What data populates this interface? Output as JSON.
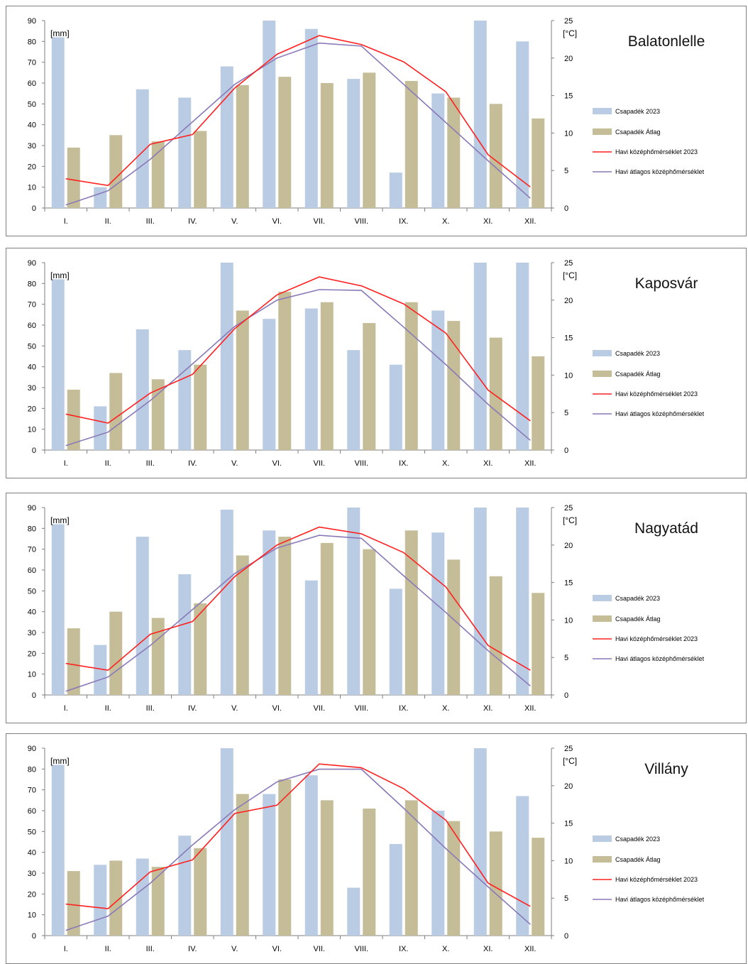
{
  "colors": {
    "precip_2023": "#b9cce4",
    "precip_avg": "#c4bd97",
    "temp_2023": "#ff2020",
    "temp_avg": "#8a79b8",
    "grid_axis": "#7f7f7f"
  },
  "chart_data": [
    {
      "type": "bar",
      "title": "Balatonlelle",
      "left_axis_label": "[mm]",
      "right_axis_label": "[°C]",
      "categories": [
        "I.",
        "II.",
        "III.",
        "IV.",
        "V.",
        "VI.",
        "VII.",
        "VIII.",
        "IX.",
        "X.",
        "XI.",
        "XII."
      ],
      "ylim_left": [
        0,
        90
      ],
      "ylim_right": [
        0,
        25
      ],
      "yticks_left": [
        "0",
        "10",
        "20",
        "30",
        "40",
        "50",
        "60",
        "70",
        "80",
        "90"
      ],
      "yticks_right": [
        "0",
        "5",
        "10",
        "15",
        "20",
        "25"
      ],
      "legend_position": "right",
      "series": [
        {
          "name": "Csapadék 2023",
          "type": "bar",
          "axis": "left",
          "values": [
            82,
            10,
            57,
            53,
            68,
            90,
            86,
            62,
            17,
            55,
            90,
            80
          ]
        },
        {
          "name": "Csapadék Átlag",
          "type": "bar",
          "axis": "left",
          "values": [
            29,
            35,
            32,
            37,
            59,
            63,
            60,
            65,
            61,
            53,
            50,
            43
          ]
        },
        {
          "name": "Havi középhőmérséklet 2023",
          "type": "line",
          "axis": "right",
          "values": [
            3.9,
            3.0,
            8.5,
            9.8,
            16.0,
            20.5,
            23.0,
            21.8,
            19.5,
            15.5,
            7.1,
            2.8
          ]
        },
        {
          "name": "Havi átlagos középhőmérséklet",
          "type": "line",
          "axis": "right",
          "values": [
            0.4,
            2.3,
            6.5,
            11.5,
            16.5,
            20.0,
            22.0,
            21.6,
            16.5,
            11.4,
            6.3,
            1.3
          ]
        }
      ]
    },
    {
      "type": "bar",
      "title": "Kaposvár",
      "left_axis_label": "[mm]",
      "right_axis_label": "[°C]",
      "categories": [
        "I.",
        "II.",
        "III.",
        "IV.",
        "V.",
        "VI.",
        "VII.",
        "VIII.",
        "IX.",
        "X.",
        "XI.",
        "XII."
      ],
      "ylim_left": [
        0,
        90
      ],
      "ylim_right": [
        0,
        25
      ],
      "yticks_left": [
        "0",
        "10",
        "20",
        "30",
        "40",
        "50",
        "60",
        "70",
        "80",
        "90"
      ],
      "yticks_right": [
        "0",
        "5",
        "10",
        "15",
        "20",
        "25"
      ],
      "legend_position": "right",
      "series": [
        {
          "name": "Csapadék 2023",
          "type": "bar",
          "axis": "left",
          "values": [
            82,
            21,
            58,
            48,
            90,
            63,
            68,
            48,
            41,
            67,
            90,
            90
          ]
        },
        {
          "name": "Csapadék Átlag",
          "type": "bar",
          "axis": "left",
          "values": [
            29,
            37,
            34,
            41,
            67,
            76,
            71,
            61,
            71,
            62,
            54,
            45
          ]
        },
        {
          "name": "Havi középhőmérséklet 2023",
          "type": "line",
          "axis": "right",
          "values": [
            4.8,
            3.6,
            7.6,
            10.1,
            16.2,
            20.7,
            23.1,
            21.9,
            19.5,
            15.6,
            8.0,
            3.9
          ]
        },
        {
          "name": "Havi átlagos középhőmérséklet",
          "type": "line",
          "axis": "right",
          "values": [
            0.6,
            2.4,
            6.6,
            11.5,
            16.5,
            20.0,
            21.4,
            21.3,
            16.4,
            11.4,
            6.1,
            1.3
          ]
        }
      ]
    },
    {
      "type": "bar",
      "title": "Nagyatád",
      "left_axis_label": "[mm]",
      "right_axis_label": "[°C]",
      "categories": [
        "I.",
        "II.",
        "III.",
        "IV.",
        "V.",
        "VI.",
        "VII.",
        "VIII.",
        "IX.",
        "X.",
        "XI.",
        "XII."
      ],
      "ylim_left": [
        0,
        90
      ],
      "ylim_right": [
        0,
        25
      ],
      "yticks_left": [
        "0",
        "10",
        "20",
        "30",
        "40",
        "50",
        "60",
        "70",
        "80",
        "90"
      ],
      "yticks_right": [
        "0",
        "5",
        "10",
        "15",
        "20",
        "25"
      ],
      "legend_position": "right",
      "series": [
        {
          "name": "Csapadék 2023",
          "type": "bar",
          "axis": "left",
          "values": [
            82,
            24,
            76,
            58,
            89,
            79,
            55,
            90,
            51,
            78,
            90,
            90
          ]
        },
        {
          "name": "Csapadék Átlag",
          "type": "bar",
          "axis": "left",
          "values": [
            32,
            40,
            37,
            44,
            67,
            76,
            73,
            70,
            79,
            65,
            57,
            49
          ]
        },
        {
          "name": "Havi középhőmérséklet 2023",
          "type": "line",
          "axis": "right",
          "values": [
            4.2,
            3.3,
            8.1,
            9.8,
            15.8,
            20.0,
            22.4,
            21.5,
            19.0,
            14.4,
            6.6,
            3.3
          ]
        },
        {
          "name": "Havi átlagos középhőmérséklet",
          "type": "line",
          "axis": "right",
          "values": [
            0.5,
            2.4,
            6.6,
            11.4,
            16.2,
            19.6,
            21.3,
            20.9,
            15.9,
            11.0,
            5.9,
            1.2
          ]
        }
      ]
    },
    {
      "type": "bar",
      "title": "Villány",
      "left_axis_label": "[mm]",
      "right_axis_label": "[°C]",
      "categories": [
        "I.",
        "II.",
        "III.",
        "IV.",
        "V.",
        "VI.",
        "VII.",
        "VIII.",
        "IX.",
        "X.",
        "XI.",
        "XII."
      ],
      "ylim_left": [
        0,
        90
      ],
      "ylim_right": [
        0,
        25
      ],
      "yticks_left": [
        "0",
        "10",
        "20",
        "30",
        "40",
        "50",
        "60",
        "70",
        "80",
        "90"
      ],
      "yticks_right": [
        "0",
        "5",
        "10",
        "15",
        "20",
        "25"
      ],
      "legend_position": "right",
      "series": [
        {
          "name": "Csapadék 2023",
          "type": "bar",
          "axis": "left",
          "values": [
            82,
            34,
            37,
            48,
            90,
            68,
            77,
            23,
            44,
            60,
            90,
            67
          ]
        },
        {
          "name": "Csapadék Átlag",
          "type": "bar",
          "axis": "left",
          "values": [
            31,
            36,
            33,
            42,
            68,
            75,
            65,
            61,
            65,
            55,
            50,
            47
          ]
        },
        {
          "name": "Havi középhőmérséklet 2023",
          "type": "line",
          "axis": "right",
          "values": [
            4.2,
            3.6,
            8.5,
            10.1,
            16.3,
            17.4,
            22.9,
            22.4,
            19.6,
            15.4,
            7.0,
            3.9
          ]
        },
        {
          "name": "Havi átlagos középhőmérséklet",
          "type": "line",
          "axis": "right",
          "values": [
            0.7,
            2.6,
            7.0,
            12.1,
            16.8,
            20.5,
            22.2,
            22.2,
            17.0,
            11.6,
            6.5,
            1.5
          ]
        }
      ]
    }
  ]
}
